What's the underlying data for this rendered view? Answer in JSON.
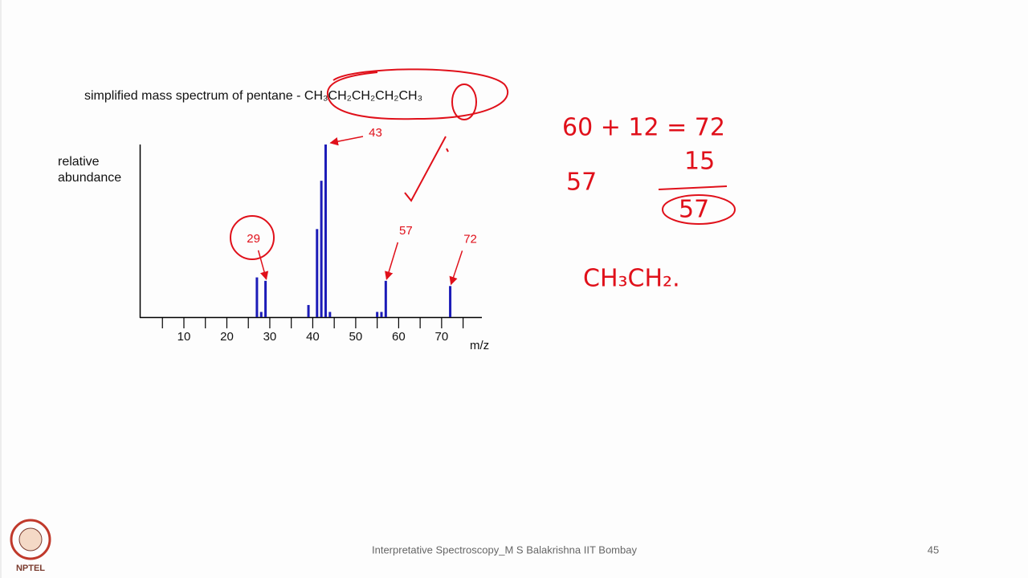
{
  "chart_data": {
    "type": "bar",
    "title": "simplified mass spectrum of pentane - CH₃CH₂CH₂CH₂CH₃",
    "y_label": "relative abundance",
    "x_label": "m/z",
    "x": [
      27,
      28,
      29,
      39,
      41,
      42,
      43,
      44,
      55,
      56,
      57,
      72
    ],
    "values": [
      23,
      3,
      21,
      7,
      51,
      79,
      100,
      3,
      3,
      3,
      21,
      18
    ],
    "color": "#1c1cb8",
    "xlim": [
      0,
      79
    ],
    "xticks": [
      10,
      20,
      30,
      40,
      50,
      60,
      70
    ],
    "xminor_ticks": [
      5,
      15,
      25,
      35,
      45,
      55,
      65,
      75
    ],
    "ylim": [
      0,
      100
    ],
    "annotations": [
      43,
      29,
      57,
      72
    ],
    "annotation_color": "#e0101a"
  },
  "handwritten_notes": [
    "60 + 12 = 72",
    "15",
    "57",
    "57",
    "CH₃CH₂."
  ],
  "footer": {
    "text": "Interpretative Spectroscopy_M S Balakrishna IIT Bombay",
    "page": "45",
    "logo": "NPTEL"
  }
}
